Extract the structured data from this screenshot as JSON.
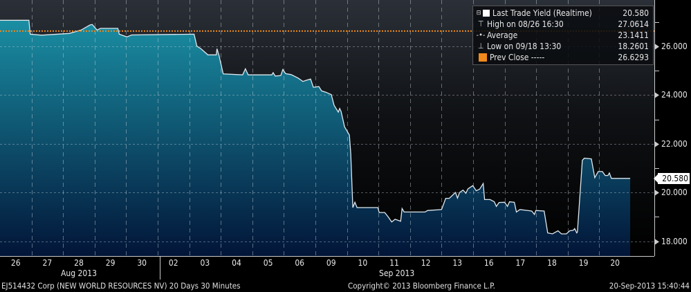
{
  "chart_data": {
    "type": "area",
    "security": "EJ514432 Corp (NEW WORLD RESOURCES NV) 20 Days 30 Minutes",
    "copyright": "Copyright© 2013 Bloomberg Finance L.P.",
    "timestamp": "20-Sep-2013 15:40:44",
    "x_days": [
      "08/26",
      "08/27",
      "08/28",
      "08/29",
      "08/30",
      "09/02",
      "09/03",
      "09/04",
      "09/05",
      "09/06",
      "09/09",
      "09/10",
      "09/11",
      "09/12",
      "09/13",
      "09/16",
      "09/17",
      "09/18",
      "09/19",
      "09/20"
    ],
    "x_tick_labels": [
      "26",
      "27",
      "28",
      "29",
      "30",
      "02",
      "03",
      "04",
      "05",
      "06",
      "09",
      "10",
      "11",
      "12",
      "13",
      "16",
      "17",
      "18",
      "19",
      "20"
    ],
    "x_month_labels": [
      "Aug 2013",
      "Sep 2013"
    ],
    "y_tick_labels": [
      "26.000",
      "24.000",
      "22.000",
      "20.000",
      "18.000"
    ],
    "y_ticks": [
      26,
      24,
      22,
      20,
      18
    ],
    "ylim": [
      17.4,
      27.9
    ],
    "y_axis_side": "right",
    "grid": true,
    "legend_placement": "top-right",
    "last_value_tag": "20.580",
    "colors": {
      "line": "#dfe8ee",
      "fill_top": "#1a8ea3",
      "fill_bottom": "#021538",
      "prev_close": "#f08a1c"
    },
    "legend": [
      {
        "icon": "white-square",
        "label": "Last Trade Yield (Realtime)",
        "value": "20.580"
      },
      {
        "icon": "high-marker",
        "label": "High on 08/26 16:30",
        "value": "27.0614"
      },
      {
        "icon": "average-marker",
        "label": "Average",
        "value": "23.1411"
      },
      {
        "icon": "low-marker",
        "label": "Low on 09/18 13:30",
        "value": "18.2601"
      },
      {
        "icon": "orange-square",
        "label": "Prev Close -----",
        "value": "26.6293"
      }
    ],
    "prev_close": 26.6293,
    "series": [
      {
        "name": "Last Trade Yield (Realtime)",
        "points": [
          [
            "08/26 00:00",
            27.07
          ],
          [
            "08/26 22:00",
            27.07
          ],
          [
            "08/26 23:00",
            26.5
          ],
          [
            "08/27 07:40",
            26.46
          ],
          [
            "08/28 04:45",
            26.53
          ],
          [
            "08/28 13:43",
            26.67
          ],
          [
            "08/28 20:34",
            26.88
          ],
          [
            "08/28 22:09",
            26.9
          ],
          [
            "08/29 01:50",
            26.67
          ],
          [
            "08/29 04:29",
            26.74
          ],
          [
            "08/29 17:40",
            26.74
          ],
          [
            "08/29 18:43",
            26.5
          ],
          [
            "08/30 00:32",
            26.39
          ],
          [
            "08/30 04:13",
            26.47
          ],
          [
            "09/03 03:42",
            26.5
          ],
          [
            "09/03 05:48",
            26.01
          ],
          [
            "09/03 08:58",
            25.9
          ],
          [
            "09/03 14:14",
            25.65
          ],
          [
            "09/03 20:34",
            25.65
          ],
          [
            "09/03 21:06",
            25.9
          ],
          [
            "09/03 22:41",
            25.62
          ],
          [
            "09/04 01:50",
            24.87
          ],
          [
            "09/04 16:37",
            24.83
          ],
          [
            "09/04 18:43",
            25.08
          ],
          [
            "09/04 20:50",
            24.83
          ],
          [
            "09/05 14:46",
            24.83
          ],
          [
            "09/05 15:49",
            24.92
          ],
          [
            "09/05 17:24",
            24.78
          ],
          [
            "09/05 21:38",
            24.8
          ],
          [
            "09/05 23:12",
            25.05
          ],
          [
            "09/06 01:19",
            24.88
          ],
          [
            "09/06 05:32",
            24.84
          ],
          [
            "09/06 10:49",
            24.7
          ],
          [
            "09/06 14:30",
            24.56
          ],
          [
            "09/06 16:37",
            24.6
          ],
          [
            "09/06 20:18",
            24.66
          ],
          [
            "09/06 22:25",
            24.32
          ],
          [
            "09/09 02:38",
            24.35
          ],
          [
            "09/09 04:45",
            24.17
          ],
          [
            "09/09 07:55",
            24.12
          ],
          [
            "09/09 12:07",
            24.02
          ],
          [
            "09/09 14:14",
            23.58
          ],
          [
            "09/09 17:24",
            23.3
          ],
          [
            "09/09 18:27",
            23.45
          ],
          [
            "09/09 19:30",
            23.33
          ],
          [
            "09/09 22:09",
            22.7
          ],
          [
            "09/10 01:50",
            22.36
          ],
          [
            "09/10 02:54",
            21.6
          ],
          [
            "09/10 04:29",
            19.38
          ],
          [
            "09/10 06:04",
            19.6
          ],
          [
            "09/10 07:40",
            19.38
          ],
          [
            "09/10 23:28",
            19.38
          ],
          [
            "09/11 00:32",
            19.18
          ],
          [
            "09/11 04:45",
            19.18
          ],
          [
            "09/11 07:23",
            19.0
          ],
          [
            "09/11 10:02",
            18.79
          ],
          [
            "09/11 12:39",
            18.9
          ],
          [
            "09/11 16:52",
            18.82
          ],
          [
            "09/11 17:56",
            19.34
          ],
          [
            "09/11 19:30",
            19.2
          ],
          [
            "09/12 11:21",
            19.2
          ],
          [
            "09/12 13:26",
            19.26
          ],
          [
            "09/13 00:00",
            19.3
          ],
          [
            "09/13 03:10",
            19.76
          ],
          [
            "09/13 05:49",
            19.76
          ],
          [
            "09/13 10:34",
            20.0
          ],
          [
            "09/13 12:07",
            19.77
          ],
          [
            "09/13 13:43",
            20.0
          ],
          [
            "09/13 16:20",
            20.1
          ],
          [
            "09/13 18:27",
            19.97
          ],
          [
            "09/13 20:02",
            20.15
          ],
          [
            "09/13 23:44",
            20.28
          ],
          [
            "09/16 02:22",
            20.07
          ],
          [
            "09/16 05:01",
            20.14
          ],
          [
            "09/16 07:40",
            20.37
          ],
          [
            "09/16 08:43",
            19.71
          ],
          [
            "09/16 12:55",
            19.71
          ],
          [
            "09/16 16:05",
            19.62
          ],
          [
            "09/16 17:40",
            19.43
          ],
          [
            "09/16 19:46",
            19.59
          ],
          [
            "09/17 00:00",
            19.6
          ],
          [
            "09/17 02:07",
            19.43
          ],
          [
            "09/17 03:42",
            19.62
          ],
          [
            "09/17 07:23",
            19.6
          ],
          [
            "09/17 08:58",
            19.2
          ],
          [
            "09/17 11:37",
            19.3
          ],
          [
            "09/17 20:34",
            19.24
          ],
          [
            "09/17 22:41",
            19.1
          ],
          [
            "09/17 23:44",
            19.26
          ],
          [
            "09/18 06:04",
            19.24
          ],
          [
            "09/18 08:43",
            18.34
          ],
          [
            "09/18 12:23",
            18.3
          ],
          [
            "09/18 16:36",
            18.43
          ],
          [
            "09/18 19:14",
            18.3
          ],
          [
            "09/18 22:57",
            18.3
          ],
          [
            "09/19 01:35",
            18.43
          ],
          [
            "09/19 04:13",
            18.45
          ],
          [
            "09/19 05:17",
            18.52
          ],
          [
            "09/19 06:51",
            18.34
          ],
          [
            "09/19 07:23",
            18.38
          ],
          [
            "09/19 11:05",
            21.32
          ],
          [
            "09/19 12:39",
            21.41
          ],
          [
            "09/19 17:56",
            21.38
          ],
          [
            "09/19 20:34",
            20.61
          ],
          [
            "09/19 23:12",
            20.86
          ],
          [
            "09/20 02:22",
            20.86
          ],
          [
            "09/20 04:29",
            20.7
          ],
          [
            "09/20 06:36",
            20.7
          ],
          [
            "09/20 07:40",
            20.8
          ],
          [
            "09/20 09:14",
            20.58
          ],
          [
            "09/20 23:30",
            20.58
          ]
        ]
      }
    ]
  }
}
